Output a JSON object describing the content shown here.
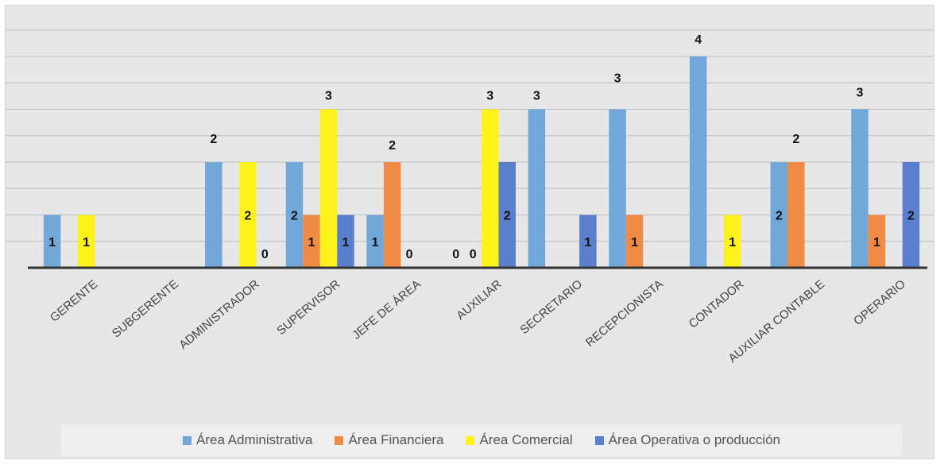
{
  "chart_data": {
    "type": "bar",
    "categories": [
      "GERENTE",
      "SUBGERENTE",
      "ADMINISTRADOR",
      "SUPERVISOR",
      "JEFE DE ÁREA",
      "AUXILIAR",
      "SECRETARIO",
      "RECEPCIONISTA",
      "CONTADOR",
      "AUXILIAR CONTABLE",
      "OPERARIO"
    ],
    "series": [
      {
        "name": "Área Administrativa",
        "color": "#71a7d9",
        "values": [
          1,
          null,
          2,
          2,
          1,
          0,
          3,
          3,
          4,
          2,
          3
        ],
        "labels": [
          "1",
          "",
          "2",
          "2",
          "1",
          "0",
          "3",
          "3",
          "4",
          "2",
          "3"
        ]
      },
      {
        "name": "Área Financiera",
        "color": "#ef8b44",
        "values": [
          null,
          null,
          null,
          1,
          2,
          0,
          null,
          1,
          null,
          2,
          1
        ],
        "labels": [
          "",
          "",
          "",
          "1",
          "2",
          "0",
          "",
          "1",
          "",
          "2",
          "1"
        ]
      },
      {
        "name": "Área Comercial",
        "color": "#fdf21a",
        "values": [
          1,
          null,
          2,
          3,
          0,
          3,
          null,
          null,
          1,
          null,
          null
        ],
        "labels": [
          "1",
          "",
          "2",
          "3",
          "0",
          "3",
          "",
          "",
          "1",
          "",
          ""
        ]
      },
      {
        "name": "Área Operativa o producción",
        "color": "#5a7fcc",
        "values": [
          null,
          null,
          0,
          1,
          null,
          2,
          1,
          null,
          null,
          null,
          2
        ],
        "labels": [
          "",
          "",
          "0",
          "1",
          "",
          "2",
          "1",
          "",
          "",
          "",
          "2"
        ]
      }
    ],
    "ylim": [
      0,
      5
    ],
    "grid": true,
    "legend_position": "bottom"
  }
}
